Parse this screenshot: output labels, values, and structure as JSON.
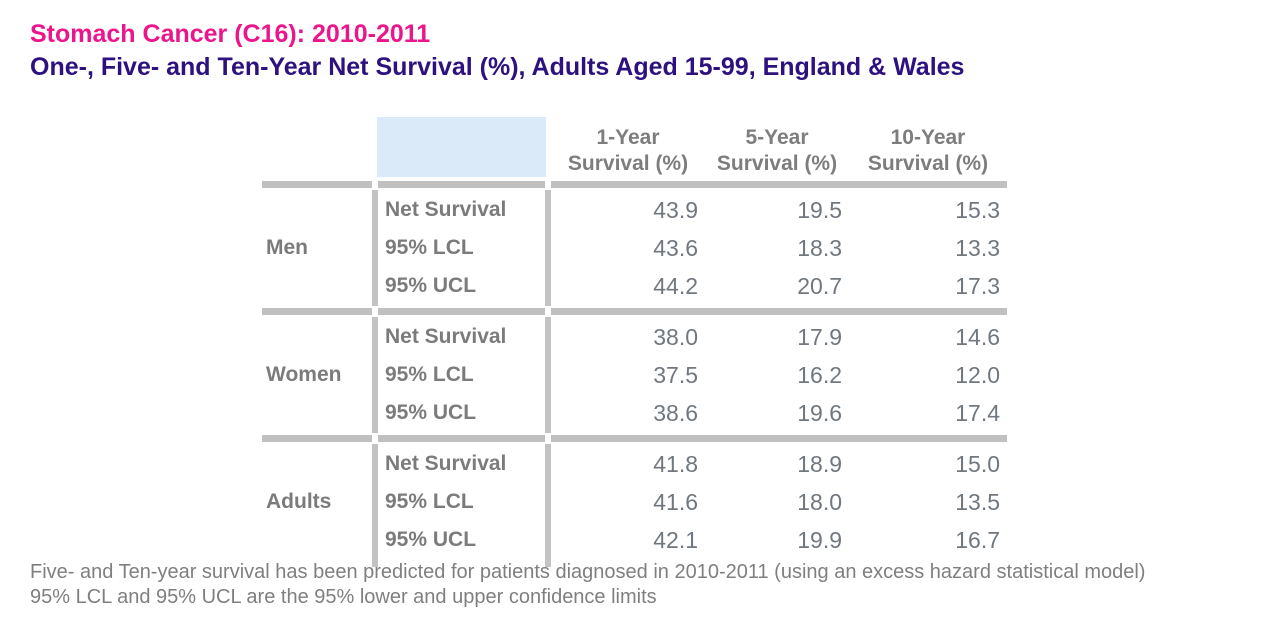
{
  "header": {
    "title": "Stomach Cancer (C16): 2010-2011",
    "subtitle": "One-, Five- and Ten-Year Net Survival (%), Adults Aged 15-99, England & Wales"
  },
  "colors": {
    "title_pink": "#EB168C",
    "subtitle_purple": "#2D117E",
    "header_cell_blue": "#DAEAF9",
    "grid_line_gray": "#C0C0C0",
    "label_text_gray": "#7B7B7B",
    "value_text_gray": "#70777E"
  },
  "chart_data": {
    "type": "table",
    "title": "Stomach Cancer (C16): 2010-2011",
    "subtitle": "One-, Five- and Ten-Year Net Survival (%), Adults Aged 15-99, England & Wales",
    "columns": [
      {
        "label": "1-Year Survival (%)",
        "line1": "1-Year",
        "line2": "Survival (%)"
      },
      {
        "label": "5-Year Survival (%)",
        "line1": "5-Year",
        "line2": "Survival (%)"
      },
      {
        "label": "10-Year Survival (%)",
        "line1": "10-Year",
        "line2": "Survival (%)"
      }
    ],
    "groups": [
      {
        "name": "Men",
        "rows": [
          {
            "metric": "Net Survival",
            "values": [
              "43.9",
              "19.5",
              "15.3"
            ]
          },
          {
            "metric": "95% LCL",
            "values": [
              "43.6",
              "18.3",
              "13.3"
            ]
          },
          {
            "metric": "95% UCL",
            "values": [
              "44.2",
              "20.7",
              "17.3"
            ]
          }
        ]
      },
      {
        "name": "Women",
        "rows": [
          {
            "metric": "Net Survival",
            "values": [
              "38.0",
              "17.9",
              "14.6"
            ]
          },
          {
            "metric": "95% LCL",
            "values": [
              "37.5",
              "16.2",
              "12.0"
            ]
          },
          {
            "metric": "95% UCL",
            "values": [
              "38.6",
              "19.6",
              "17.4"
            ]
          }
        ]
      },
      {
        "name": "Adults",
        "rows": [
          {
            "metric": "Net Survival",
            "values": [
              "41.8",
              "18.9",
              "15.0"
            ]
          },
          {
            "metric": "95% LCL",
            "values": [
              "41.6",
              "18.0",
              "13.5"
            ]
          },
          {
            "metric": "95% UCL",
            "values": [
              "42.1",
              "19.9",
              "16.7"
            ]
          }
        ]
      }
    ],
    "footnotes": [
      "Five- and Ten-year survival has been predicted for patients diagnosed in 2010-2011 (using an excess hazard statistical model)",
      "95% LCL and 95% UCL are the 95% lower and upper confidence limits"
    ]
  }
}
